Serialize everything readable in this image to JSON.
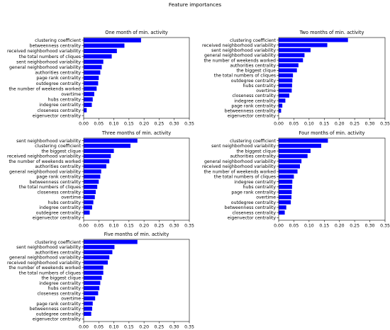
{
  "figure": {
    "title": "Feature importances"
  },
  "chart_data": [
    {
      "type": "bar",
      "orientation": "horizontal",
      "title": "One month of min. activity",
      "categories": [
        "clustering coefficient",
        "betweenness centrality",
        "received neighborhood variability",
        "the total numbers of cliques",
        "sent neighborhood variability",
        "general neighborhood variability",
        "authorities centrality",
        "page rank centrality",
        "outdegree centrality",
        "the number of weekends worked",
        "overtime",
        "hubs centrality",
        "indegree centrality",
        "closeness centrality",
        "eigenvector centrality"
      ],
      "values": [
        0.19,
        0.135,
        0.11,
        0.093,
        0.065,
        0.06,
        0.055,
        0.05,
        0.048,
        0.043,
        0.035,
        0.03,
        0.027,
        0.01,
        0.0
      ],
      "xlim": [
        0,
        0.35
      ],
      "xticks": [
        "0.00",
        "0.05",
        "0.10",
        "0.15",
        "0.20",
        "0.25",
        "0.30",
        "0.35"
      ],
      "color": "#0000ff"
    },
    {
      "type": "bar",
      "orientation": "horizontal",
      "title": "Two months of min. activity",
      "categories": [
        "clustering coefficient",
        "received neighborhood variability",
        "sent neighborhood variability",
        "general neighborhood variability",
        "the number of weekends worked",
        "authorities centrality",
        "the biggest clique",
        "the total numbers of cliques",
        "outdegree centrality",
        "hubs centrality",
        "overtime",
        "closeness centrality",
        "indegree centrality",
        "page rank centrality",
        "betweenness centrality",
        "eigenvector centrality"
      ],
      "values": [
        0.228,
        0.16,
        0.105,
        0.085,
        0.08,
        0.065,
        0.06,
        0.047,
        0.045,
        0.044,
        0.043,
        0.035,
        0.022,
        0.012,
        0.008,
        0.0
      ],
      "xlim": [
        0,
        0.35
      ],
      "xticks": [
        "0.00",
        "0.05",
        "0.10",
        "0.15",
        "0.20",
        "0.25",
        "0.30",
        "0.35"
      ],
      "color": "#0000ff"
    },
    {
      "type": "bar",
      "orientation": "horizontal",
      "title": "Three months of min. activity",
      "categories": [
        "sent neighborhood variability",
        "clustering coefficient",
        "the biggest clique",
        "received neighborhood variability",
        "the number of weekends worked",
        "authorities centrality",
        "general neighborhood variability",
        "page rank centrality",
        "betweenness centrality",
        "the total numbers of cliques",
        "closeness centrality",
        "overtime",
        "hubs centrality",
        "indegree centrality",
        "outdegree centrality",
        "eigenvector centrality"
      ],
      "values": [
        0.178,
        0.155,
        0.1,
        0.09,
        0.085,
        0.075,
        0.058,
        0.055,
        0.05,
        0.045,
        0.04,
        0.037,
        0.032,
        0.028,
        0.02,
        0.0
      ],
      "xlim": [
        0,
        0.35
      ],
      "xticks": [
        "0.00",
        "0.05",
        "0.10",
        "0.15",
        "0.20",
        "0.25",
        "0.30",
        "0.35"
      ],
      "color": "#0000ff"
    },
    {
      "type": "bar",
      "orientation": "horizontal",
      "title": "Four months of min. activity",
      "categories": [
        "clustering coefficient",
        "sent neighborhood variability",
        "the biggest clique",
        "authorities centrality",
        "general neighborhood variability",
        "received neighborhood variability",
        "the number of weekends worked",
        "the total numbers of cliques",
        "indegree centrality",
        "hubs centrality",
        "page rank centrality",
        "overtime",
        "outdegree centrality",
        "betweenness centrality",
        "closeness centrality",
        "eigenvector centrality"
      ],
      "values": [
        0.162,
        0.14,
        0.105,
        0.095,
        0.075,
        0.07,
        0.062,
        0.05,
        0.045,
        0.044,
        0.043,
        0.042,
        0.04,
        0.025,
        0.02,
        0.0
      ],
      "xlim": [
        0,
        0.35
      ],
      "xticks": [
        "0.00",
        "0.05",
        "0.10",
        "0.15",
        "0.20",
        "0.25",
        "0.30",
        "0.35"
      ],
      "color": "#0000ff"
    },
    {
      "type": "bar",
      "orientation": "horizontal",
      "title": "Five months of min. activity",
      "categories": [
        "clustering coefficient",
        "sent neighborhood variability",
        "authorities centrality",
        "general neighborhood variability",
        "received neighborhood variability",
        "the number of weekends worked",
        "the total numbers of cliques",
        "the biggest clique",
        "indegree centrality",
        "hubs centrality",
        "closeness centrality",
        "overtime",
        "page rank centrality",
        "betweenness centrality",
        "outdegree centrality",
        "eigenvector centrality"
      ],
      "values": [
        0.178,
        0.102,
        0.095,
        0.085,
        0.08,
        0.065,
        0.065,
        0.06,
        0.055,
        0.052,
        0.048,
        0.038,
        0.03,
        0.028,
        0.025,
        0.0
      ],
      "xlim": [
        0,
        0.35
      ],
      "xticks": [
        "0.00",
        "0.05",
        "0.10",
        "0.15",
        "0.20",
        "0.25",
        "0.30",
        "0.35"
      ],
      "color": "#0000ff"
    }
  ]
}
